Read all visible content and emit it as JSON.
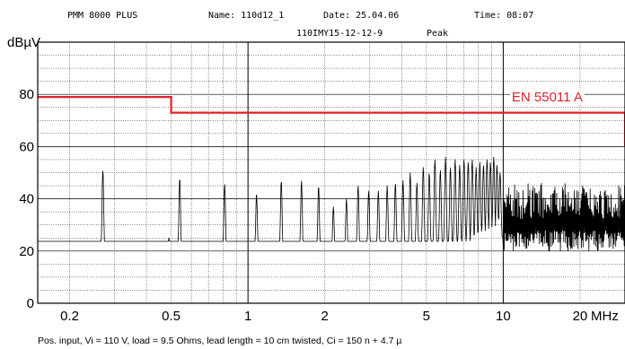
{
  "header": {
    "instrument": "PMM 8000 PLUS",
    "name": "Name: 110d12_1",
    "date": "Date: 25.04.06",
    "time": "Time: 08:07",
    "subtitle": "110IMY15-12-12-9",
    "detector": "Peak"
  },
  "caption": "Pos. input, Vi = 110 V, load = 9.5 Ohms, lead length = 10 cm twisted, Ci = 150 n + 4.7 µ",
  "colors": {
    "trace": "#000000",
    "limit": "#e0202a",
    "grid": "#000000"
  },
  "chart_data": {
    "type": "line",
    "title": "",
    "ylabel": "dBµV",
    "xlabel": "MHz",
    "x_scale": "log",
    "xlim": [
      0.15,
      30
    ],
    "ylim": [
      0,
      100
    ],
    "grid": true,
    "y_ticks": [
      0,
      20,
      40,
      60,
      80
    ],
    "x_ticks": [
      {
        "value": 0.2,
        "label": "0.2"
      },
      {
        "value": 0.5,
        "label": "0.5"
      },
      {
        "value": 1,
        "label": "1"
      },
      {
        "value": 2,
        "label": "2"
      },
      {
        "value": 5,
        "label": "5"
      },
      {
        "value": 10,
        "label": "10"
      },
      {
        "value": 20,
        "label": "20"
      }
    ],
    "limit_line": {
      "name": "EN 55011 A",
      "points": [
        [
          0.15,
          79
        ],
        [
          0.5,
          79
        ],
        [
          0.5,
          73
        ],
        [
          30,
          73
        ],
        [
          30,
          60
        ]
      ]
    },
    "series": [
      {
        "name": "",
        "noise_floor": [
          [
            0.15,
            17
          ],
          [
            0.3,
            15
          ],
          [
            0.5,
            14
          ],
          [
            1,
            14
          ],
          [
            2,
            14
          ],
          [
            4,
            16
          ],
          [
            6,
            19
          ],
          [
            10,
            24
          ],
          [
            20,
            27
          ],
          [
            30,
            28
          ]
        ],
        "peaks": [
          [
            0.19,
            21
          ],
          [
            0.245,
            22
          ],
          [
            0.27,
            51
          ],
          [
            0.325,
            23
          ],
          [
            0.49,
            25
          ],
          [
            0.54,
            48
          ],
          [
            0.81,
            46
          ],
          [
            1.08,
            42
          ],
          [
            1.35,
            47
          ],
          [
            1.62,
            47
          ],
          [
            1.89,
            45
          ],
          [
            2.16,
            37
          ],
          [
            2.43,
            40
          ],
          [
            2.7,
            45
          ],
          [
            2.97,
            43
          ],
          [
            3.24,
            43
          ],
          [
            3.51,
            45
          ],
          [
            3.78,
            46
          ],
          [
            4.05,
            47
          ],
          [
            4.32,
            50
          ],
          [
            4.59,
            46
          ],
          [
            4.86,
            52
          ],
          [
            5.13,
            50
          ],
          [
            5.4,
            55
          ],
          [
            5.67,
            51
          ],
          [
            5.94,
            56
          ],
          [
            6.21,
            52
          ],
          [
            6.48,
            55
          ],
          [
            6.75,
            53
          ],
          [
            7.02,
            55
          ],
          [
            7.29,
            54
          ],
          [
            7.56,
            55
          ],
          [
            7.83,
            52
          ],
          [
            8.1,
            54
          ],
          [
            8.37,
            53
          ],
          [
            8.64,
            55
          ],
          [
            8.91,
            54
          ],
          [
            9.18,
            56
          ],
          [
            9.45,
            53
          ],
          [
            9.72,
            50
          ]
        ],
        "dense_band": {
          "from": 10,
          "to": 30,
          "low": 20,
          "high": 46
        }
      }
    ]
  }
}
